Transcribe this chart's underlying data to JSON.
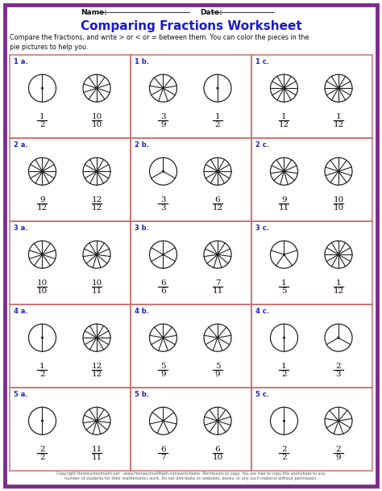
{
  "title": "Comparing Fractions Worksheet",
  "instruction": "Compare the fractions, and write > or < or = between them. You can color the pieces in the\npie pictures to help you.",
  "border_color": "#7b2d8b",
  "cell_border_color": "#c97070",
  "title_color": "#1a1acc",
  "label_color": "#2222bb",
  "text_color": "#111111",
  "bg_color": "#ffffff",
  "problems": [
    {
      "label": "1 a.",
      "f1n": 1,
      "f1d": 2,
      "f2n": 10,
      "f2d": 10
    },
    {
      "label": "1 b.",
      "f1n": 3,
      "f1d": 9,
      "f2n": 1,
      "f2d": 2
    },
    {
      "label": "1 c.",
      "f1n": 1,
      "f1d": 12,
      "f2n": 1,
      "f2d": 12
    },
    {
      "label": "2 a.",
      "f1n": 9,
      "f1d": 12,
      "f2n": 12,
      "f2d": 12
    },
    {
      "label": "2 b.",
      "f1n": 3,
      "f1d": 3,
      "f2n": 6,
      "f2d": 12
    },
    {
      "label": "2 c.",
      "f1n": 9,
      "f1d": 11,
      "f2n": 10,
      "f2d": 10
    },
    {
      "label": "3 a.",
      "f1n": 10,
      "f1d": 10,
      "f2n": 10,
      "f2d": 11
    },
    {
      "label": "3 b.",
      "f1n": 6,
      "f1d": 6,
      "f2n": 7,
      "f2d": 11
    },
    {
      "label": "3 c.",
      "f1n": 1,
      "f1d": 5,
      "f2n": 1,
      "f2d": 12
    },
    {
      "label": "4 a.",
      "f1n": 1,
      "f1d": 2,
      "f2n": 12,
      "f2d": 12
    },
    {
      "label": "4 b.",
      "f1n": 5,
      "f1d": 9,
      "f2n": 5,
      "f2d": 9
    },
    {
      "label": "4 c.",
      "f1n": 1,
      "f1d": 2,
      "f2n": 2,
      "f2d": 3
    },
    {
      "label": "5 a.",
      "f1n": 2,
      "f1d": 2,
      "f2n": 11,
      "f2d": 11
    },
    {
      "label": "5 b.",
      "f1n": 6,
      "f1d": 7,
      "f2n": 6,
      "f2d": 10
    },
    {
      "label": "5 c.",
      "f1n": 2,
      "f1d": 2,
      "f2n": 2,
      "f2d": 9
    }
  ],
  "footer": "Copyright Homeschoolmath.net - www.HomeschoolMath.net/worksheets. Permission to copy: You are free to copy this worksheet to any\nnumber of students for their mathematics work. Do not distribute on websites, books, or any such material without permission."
}
